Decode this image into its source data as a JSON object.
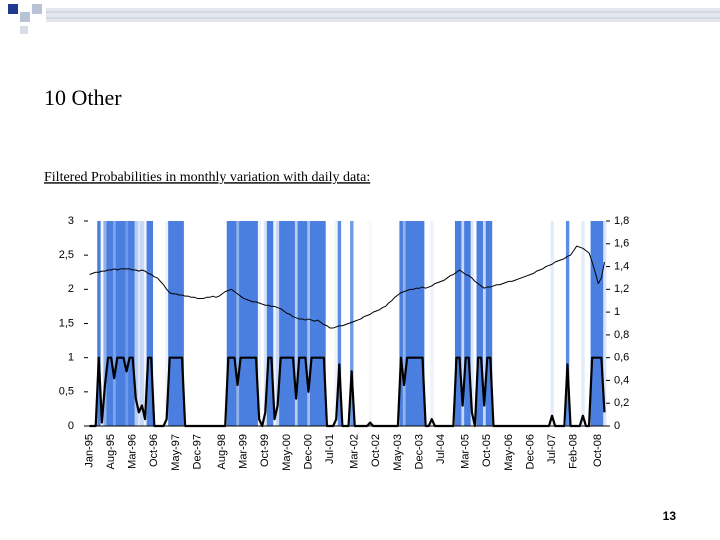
{
  "slide": {
    "title": "10 Other",
    "caption": "Filtered Probabilities in monthly variation with daily data:",
    "page_number": 13
  },
  "chart_data": {
    "type": "line",
    "categories": [
      "Jan-95",
      null,
      null,
      null,
      null,
      null,
      null,
      "Aug-95",
      null,
      null,
      null,
      null,
      null,
      null,
      "Mar-96",
      null,
      null,
      null,
      null,
      null,
      null,
      "Oct-96",
      null,
      null,
      null,
      null,
      null,
      null,
      "May-97",
      null,
      null,
      null,
      null,
      null,
      null,
      "Dec-97",
      null,
      null,
      null,
      null,
      null,
      null,
      null,
      "Aug-98",
      null,
      null,
      null,
      null,
      null,
      null,
      "Mar-99",
      null,
      null,
      null,
      null,
      null,
      null,
      "Oct-99",
      null,
      null,
      null,
      null,
      null,
      null,
      "May-00",
      null,
      null,
      null,
      null,
      null,
      null,
      "Dec-00",
      null,
      null,
      null,
      null,
      null,
      null,
      "Jul-01",
      null,
      null,
      null,
      null,
      null,
      null,
      null,
      "Mar-02",
      null,
      null,
      null,
      null,
      null,
      null,
      "Oct-02",
      null,
      null,
      null,
      null,
      null,
      null,
      "May-03",
      null,
      null,
      null,
      null,
      null,
      null,
      "Dec-03",
      null,
      null,
      null,
      null,
      null,
      null,
      "Jul-04",
      null,
      null,
      null,
      null,
      null,
      null,
      null,
      "Mar-05",
      null,
      null,
      null,
      null,
      null,
      null,
      "Oct-05",
      null,
      null,
      null,
      null,
      null,
      null,
      "May-06",
      null,
      null,
      null,
      null,
      null,
      null,
      "Dec-06",
      null,
      null,
      null,
      null,
      null,
      null,
      "Jul-07",
      null,
      null,
      null,
      null,
      null,
      null,
      "Feb-08",
      null,
      null,
      null,
      null,
      null,
      null,
      null,
      "Oct-08",
      null,
      null
    ],
    "series": [
      {
        "color": "#000000",
        "shade_color": "#4a7fe0",
        "axis": "y",
        "values": [
          0,
          0,
          0,
          1,
          0.05,
          0.6,
          1,
          1,
          0.7,
          1,
          1,
          1,
          0.8,
          1,
          1,
          0.4,
          0.2,
          0.3,
          0.1,
          1,
          1,
          0,
          0,
          0,
          0,
          0.1,
          1,
          1,
          1,
          1,
          1,
          0,
          0,
          0,
          0,
          0,
          0,
          0,
          0,
          0,
          0,
          0,
          0,
          0,
          0,
          1,
          1,
          1,
          0.6,
          1,
          1,
          1,
          1,
          1,
          1,
          0.1,
          0,
          0.2,
          1,
          1,
          0.1,
          0.3,
          1,
          1,
          1,
          1,
          1,
          0.4,
          1,
          1,
          1,
          0.5,
          1,
          1,
          1,
          1,
          1,
          0,
          0,
          0,
          0.1,
          0.9,
          0,
          0,
          0,
          0.8,
          0,
          0,
          0,
          0,
          0,
          0.05,
          0,
          0,
          0,
          0,
          0,
          0,
          0,
          0,
          0,
          1,
          0.6,
          1,
          1,
          1,
          1,
          1,
          1,
          0,
          0,
          0.1,
          0,
          0,
          0,
          0,
          0,
          0,
          0,
          1,
          1,
          0.3,
          1,
          1,
          0.2,
          0,
          1,
          1,
          0.3,
          1,
          1,
          0,
          0,
          0,
          0,
          0,
          0,
          0,
          0,
          0,
          0,
          0,
          0,
          0,
          0,
          0,
          0,
          0,
          0,
          0,
          0.15,
          0,
          0,
          0,
          0,
          0.9,
          0,
          0,
          0,
          0,
          0.15,
          0,
          0,
          1,
          1,
          1,
          1,
          0.2
        ]
      },
      {
        "color": "#000000",
        "axis": "y2",
        "values": [
          1.33,
          1.34,
          1.35,
          1.35,
          1.36,
          1.36,
          1.37,
          1.37,
          1.38,
          1.37,
          1.38,
          1.38,
          1.38,
          1.38,
          1.37,
          1.37,
          1.36,
          1.37,
          1.36,
          1.34,
          1.33,
          1.31,
          1.3,
          1.27,
          1.24,
          1.2,
          1.17,
          1.16,
          1.16,
          1.15,
          1.15,
          1.14,
          1.14,
          1.13,
          1.13,
          1.12,
          1.12,
          1.12,
          1.13,
          1.13,
          1.14,
          1.13,
          1.14,
          1.16,
          1.18,
          1.19,
          1.2,
          1.18,
          1.16,
          1.14,
          1.12,
          1.11,
          1.1,
          1.09,
          1.09,
          1.08,
          1.07,
          1.06,
          1.06,
          1.05,
          1.05,
          1.04,
          1.03,
          1.01,
          0.99,
          0.98,
          0.96,
          0.95,
          0.94,
          0.94,
          0.93,
          0.94,
          0.93,
          0.92,
          0.93,
          0.91,
          0.89,
          0.88,
          0.86,
          0.86,
          0.87,
          0.88,
          0.88,
          0.89,
          0.9,
          0.91,
          0.92,
          0.93,
          0.94,
          0.96,
          0.97,
          0.98,
          1.0,
          1.01,
          1.02,
          1.04,
          1.05,
          1.08,
          1.1,
          1.13,
          1.15,
          1.17,
          1.18,
          1.19,
          1.2,
          1.2,
          1.21,
          1.21,
          1.22,
          1.21,
          1.22,
          1.23,
          1.25,
          1.26,
          1.27,
          1.28,
          1.3,
          1.32,
          1.33,
          1.35,
          1.37,
          1.35,
          1.33,
          1.32,
          1.3,
          1.27,
          1.25,
          1.23,
          1.21,
          1.22,
          1.22,
          1.23,
          1.24,
          1.24,
          1.25,
          1.26,
          1.27,
          1.27,
          1.28,
          1.29,
          1.3,
          1.31,
          1.32,
          1.33,
          1.34,
          1.36,
          1.37,
          1.38,
          1.4,
          1.41,
          1.42,
          1.44,
          1.45,
          1.46,
          1.47,
          1.49,
          1.5,
          1.54,
          1.58,
          1.57,
          1.56,
          1.54,
          1.52,
          1.44,
          1.35,
          1.25,
          1.3,
          1.44
        ]
      }
    ],
    "ylim": [
      0,
      3
    ],
    "yticks": [
      0,
      {
        "value": 0.5,
        "label": "0,5"
      },
      1,
      {
        "value": 1.5,
        "label": "1,5"
      },
      2,
      {
        "value": 2.5,
        "label": "2,5"
      },
      3
    ],
    "y2lim": [
      0,
      1.8
    ],
    "y2ticks": [
      0,
      {
        "value": 0.2,
        "label": "0,2"
      },
      {
        "value": 0.4,
        "label": "0,4"
      },
      {
        "value": 0.6,
        "label": "0,6"
      },
      {
        "value": 0.8,
        "label": "0,8"
      },
      1,
      {
        "value": 1.2,
        "label": "1,2"
      },
      {
        "value": 1.4,
        "label": "1,4"
      },
      {
        "value": 1.6,
        "label": "1,6"
      },
      {
        "value": 1.8,
        "label": "1,8"
      }
    ],
    "grid": false
  }
}
